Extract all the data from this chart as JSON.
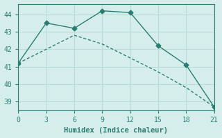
{
  "line1_x": [
    0,
    3,
    6,
    9,
    12,
    15,
    18,
    21
  ],
  "line1_y": [
    41.2,
    43.5,
    43.2,
    44.2,
    44.1,
    42.2,
    41.1,
    38.7
  ],
  "line2_x": [
    0,
    3,
    6,
    9,
    12,
    15,
    18,
    21
  ],
  "line2_y": [
    41.2,
    42.0,
    42.8,
    42.3,
    41.5,
    40.7,
    39.8,
    38.7
  ],
  "line_color": "#2a7d70",
  "bg_color": "#d5eeeb",
  "grid_color": "#b8ddd9",
  "xlabel": "Humidex (Indice chaleur)",
  "xlim": [
    0,
    21
  ],
  "ylim": [
    38.5,
    44.6
  ],
  "xticks": [
    0,
    3,
    6,
    9,
    12,
    15,
    18,
    21
  ],
  "yticks": [
    39,
    40,
    41,
    42,
    43,
    44
  ],
  "markersize": 3.5,
  "linewidth": 1.0
}
